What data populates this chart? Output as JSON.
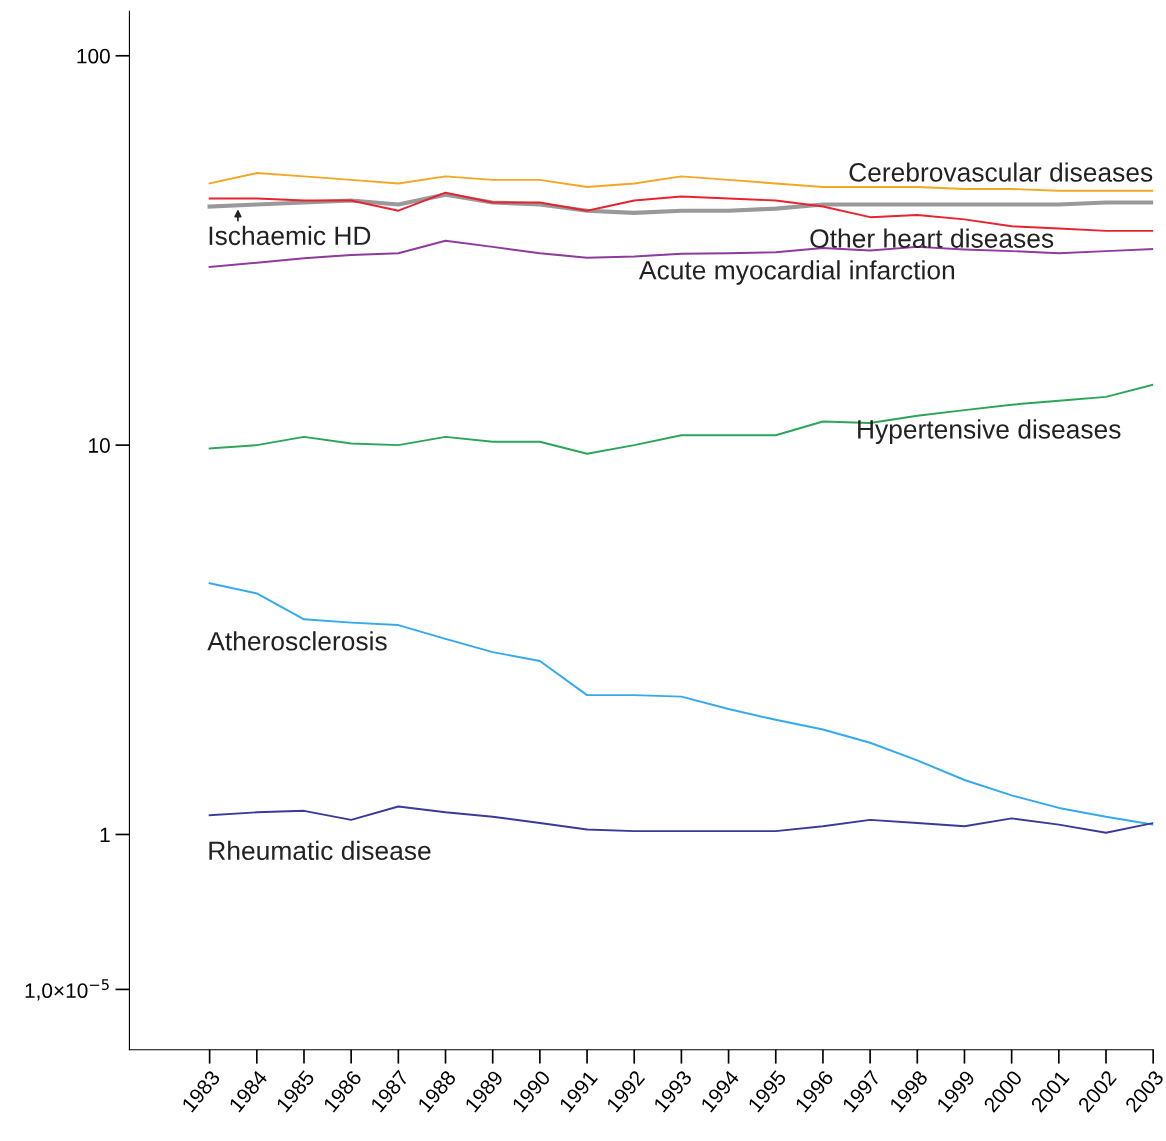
{
  "chart_data": {
    "type": "line",
    "categories": [
      "1983",
      "1984",
      "1985",
      "1986",
      "1987",
      "1988",
      "1989",
      "1990",
      "1991",
      "1992",
      "1993",
      "1994",
      "1995",
      "1996",
      "1997",
      "1998",
      "1999",
      "2000",
      "2001",
      "2002",
      "2003"
    ],
    "series": [
      {
        "name": "Cerebrovascular diseases",
        "color": "#f5a623",
        "values": [
          47,
          50,
          49,
          48,
          47,
          49,
          48,
          48,
          46,
          47,
          49,
          48,
          47,
          46,
          46,
          46,
          45.5,
          45.5,
          45,
          45,
          45
        ]
      },
      {
        "name": "Ischaemic HD",
        "color": "#999999",
        "values": [
          41,
          41.5,
          42,
          42.5,
          41.5,
          44,
          42,
          41.5,
          40,
          39.5,
          40,
          40,
          40.5,
          41.5,
          41.5,
          41.5,
          41.5,
          41.5,
          41.5,
          42,
          42
        ]
      },
      {
        "name": "Other heart diseases",
        "color": "#e8232f",
        "values": [
          43,
          43,
          42.5,
          42.5,
          40,
          44.5,
          42,
          42,
          40,
          42.5,
          43.5,
          43,
          42.5,
          41,
          38.5,
          39,
          38,
          36.5,
          36,
          35.5,
          35.5
        ]
      },
      {
        "name": "Acute myocardial infarction",
        "color": "#8e3a9e",
        "values": [
          28.7,
          29.4,
          30.2,
          30.8,
          31.1,
          33.5,
          32.3,
          31.1,
          30.3,
          30.5,
          31,
          31.1,
          31.3,
          32.1,
          31.6,
          32.3,
          31.8,
          31.5,
          31.1,
          31.5,
          31.9
        ]
      },
      {
        "name": "Hypertensive diseases",
        "color": "#2aa55a",
        "values": [
          9.8,
          10,
          10.5,
          10.1,
          10,
          10.5,
          10.2,
          10.2,
          9.5,
          10,
          10.6,
          10.6,
          10.6,
          11.5,
          11.4,
          11.9,
          12.3,
          12.7,
          13,
          13.3,
          14.3
        ]
      },
      {
        "name": "Atherosclerosis",
        "color": "#33aaee",
        "values": [
          4.42,
          4.16,
          3.57,
          3.5,
          3.45,
          3.18,
          2.94,
          2.79,
          2.28,
          2.28,
          2.26,
          2.1,
          1.97,
          1.86,
          1.72,
          1.55,
          1.38,
          1.26,
          1.17,
          1.11,
          1.06
        ]
      },
      {
        "name": "Rheumatic disease",
        "color": "#3a3a9a",
        "values": [
          1.12,
          1.14,
          1.15,
          1.09,
          1.18,
          1.14,
          1.11,
          1.07,
          1.03,
          1.02,
          1.02,
          1.02,
          1.02,
          1.05,
          1.09,
          1.07,
          1.05,
          1.1,
          1.06,
          1.01,
          1.07
        ]
      }
    ],
    "log": true,
    "ylim": [
      0.28,
      130
    ],
    "yticks": [
      100,
      10,
      1,
      {
        "value": 0.4,
        "label": "1,0×10$^{−5}$"
      }
    ],
    "grid": false,
    "legend": false,
    "marker": "none",
    "line_style": "solid"
  }
}
